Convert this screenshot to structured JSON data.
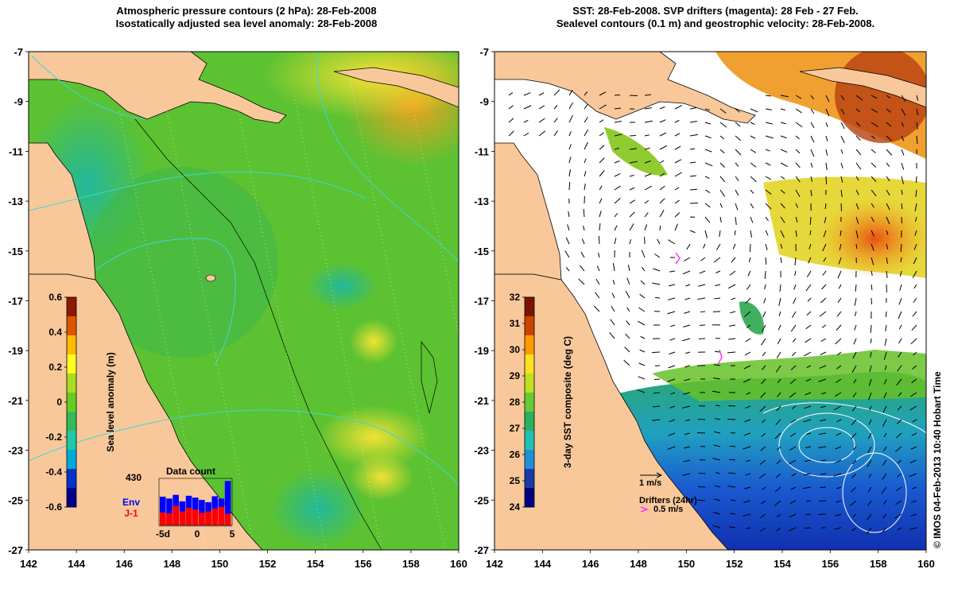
{
  "left_panel": {
    "title_line1": "Atmospheric pressure contours (2 hPa): 28-Feb-2008",
    "title_line2": "Isostatically adjusted sea level anomaly: 28-Feb-2008",
    "colorbar": {
      "label": "Sea level anomaly (m)",
      "ticks": [
        "0.6",
        "0.4",
        "0.2",
        "0",
        "-0.2",
        "-0.4",
        "-0.6"
      ]
    },
    "data_count": {
      "title": "Data count",
      "max_label": "430",
      "env_label": "Env",
      "j1_label": "J-1",
      "x_ticks": [
        "-5d",
        "0",
        "5"
      ],
      "env_values": [
        0.62,
        0.58,
        0.66,
        0.52,
        0.64,
        0.6,
        0.55,
        0.5,
        0.63,
        0.58,
        0.96
      ],
      "j1_values": [
        0.28,
        0.26,
        0.42,
        0.3,
        0.38,
        0.34,
        0.27,
        0.3,
        0.36,
        0.4,
        0.25
      ]
    }
  },
  "right_panel": {
    "title_line1": "SST: 28-Feb-2008. SVP drifters (magenta): 28 Feb - 27 Feb.",
    "title_line2": "Sealevel contours (0.1 m) and geostrophic velocity: 28-Feb-2008.",
    "colorbar": {
      "label": "3-day SST composite (deg C)",
      "ticks": [
        "32",
        "31",
        "30",
        "29",
        "28",
        "27",
        "26",
        "25",
        "24"
      ]
    },
    "velocity_legend": "1 m/s",
    "drifters_legend": "Drifters (24hr)",
    "drifters_speed": "0.5 m/s"
  },
  "axes": {
    "lon_ticks": [
      "142",
      "144",
      "146",
      "148",
      "150",
      "152",
      "154",
      "156",
      "158",
      "160"
    ],
    "lat_ticks": [
      "-7",
      "-9",
      "-11",
      "-13",
      "-15",
      "-17",
      "-19",
      "-21",
      "-23",
      "-25",
      "-27"
    ]
  },
  "credit": "© IMOS 04-Feb-2013 10:40 Hobart Time",
  "colors": {
    "land": "#f8c89a",
    "sla_ramp": [
      "#00008c",
      "#0033cc",
      "#00aadd",
      "#20c8a8",
      "#33bb55",
      "#66cc22",
      "#aadd22",
      "#ffff22",
      "#ffbb00",
      "#dd5500",
      "#8c1a00"
    ],
    "sst_ramp": [
      "#000080",
      "#1a3aa8",
      "#1f8fd8",
      "#22c0b0",
      "#2ab060",
      "#66cc33",
      "#bfe020",
      "#ffe020",
      "#ff9900",
      "#cc4400",
      "#7a1400"
    ]
  }
}
